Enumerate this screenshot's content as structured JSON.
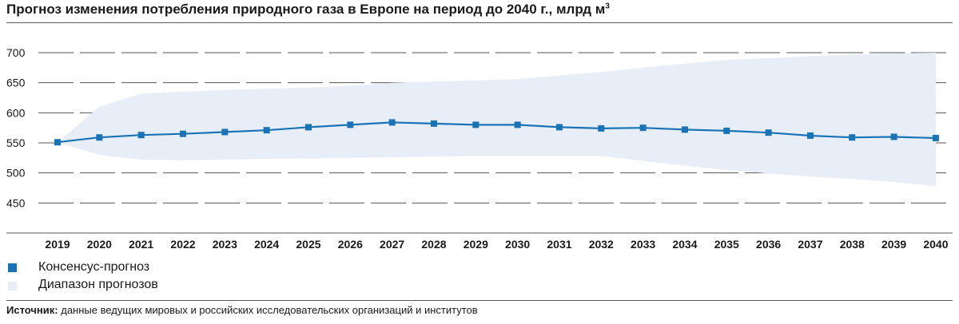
{
  "title": "Прогноз изменения потребления природного газа в Европе на период до 2040 г., млрд м",
  "title_sup": "3",
  "chart_data": {
    "type": "line",
    "x": [
      "2019",
      "2020",
      "2021",
      "2022",
      "2023",
      "2024",
      "2025",
      "2026",
      "2027",
      "2028",
      "2029",
      "2030",
      "2031",
      "2032",
      "2033",
      "2034",
      "2035",
      "2036",
      "2037",
      "2038",
      "2039",
      "2040"
    ],
    "yticks": [
      700,
      650,
      600,
      550,
      500,
      450
    ],
    "ylim": [
      400,
      700
    ],
    "series": [
      {
        "name": "Консенсус-прогноз",
        "color": "#1a73b5",
        "values": [
          551,
          559,
          563,
          565,
          568,
          571,
          576,
          580,
          584,
          582,
          580,
          580,
          576,
          574,
          575,
          572,
          570,
          567,
          562,
          559,
          560,
          558
        ]
      }
    ],
    "range": {
      "name": "Диапазон прогнозов",
      "color": "#e8eef7",
      "upper": [
        551,
        610,
        632,
        635,
        638,
        640,
        642,
        645,
        650,
        652,
        654,
        656,
        662,
        668,
        675,
        682,
        688,
        691,
        694,
        697,
        699,
        700
      ],
      "lower": [
        551,
        530,
        522,
        521,
        522,
        523,
        524,
        525,
        526,
        527,
        528,
        528,
        528,
        528,
        520,
        512,
        505,
        499,
        494,
        490,
        485,
        478
      ]
    },
    "grid": true
  },
  "legend": [
    {
      "label": "Консенсус-прогноз",
      "color": "#1a73b5",
      "type": "marker"
    },
    {
      "label": "Диапазон прогнозов",
      "color": "#e8eef7",
      "type": "area"
    }
  ],
  "source": {
    "label": "Источник:",
    "text": " данные ведущих мировых и российских исследовательских организаций и институтов"
  }
}
